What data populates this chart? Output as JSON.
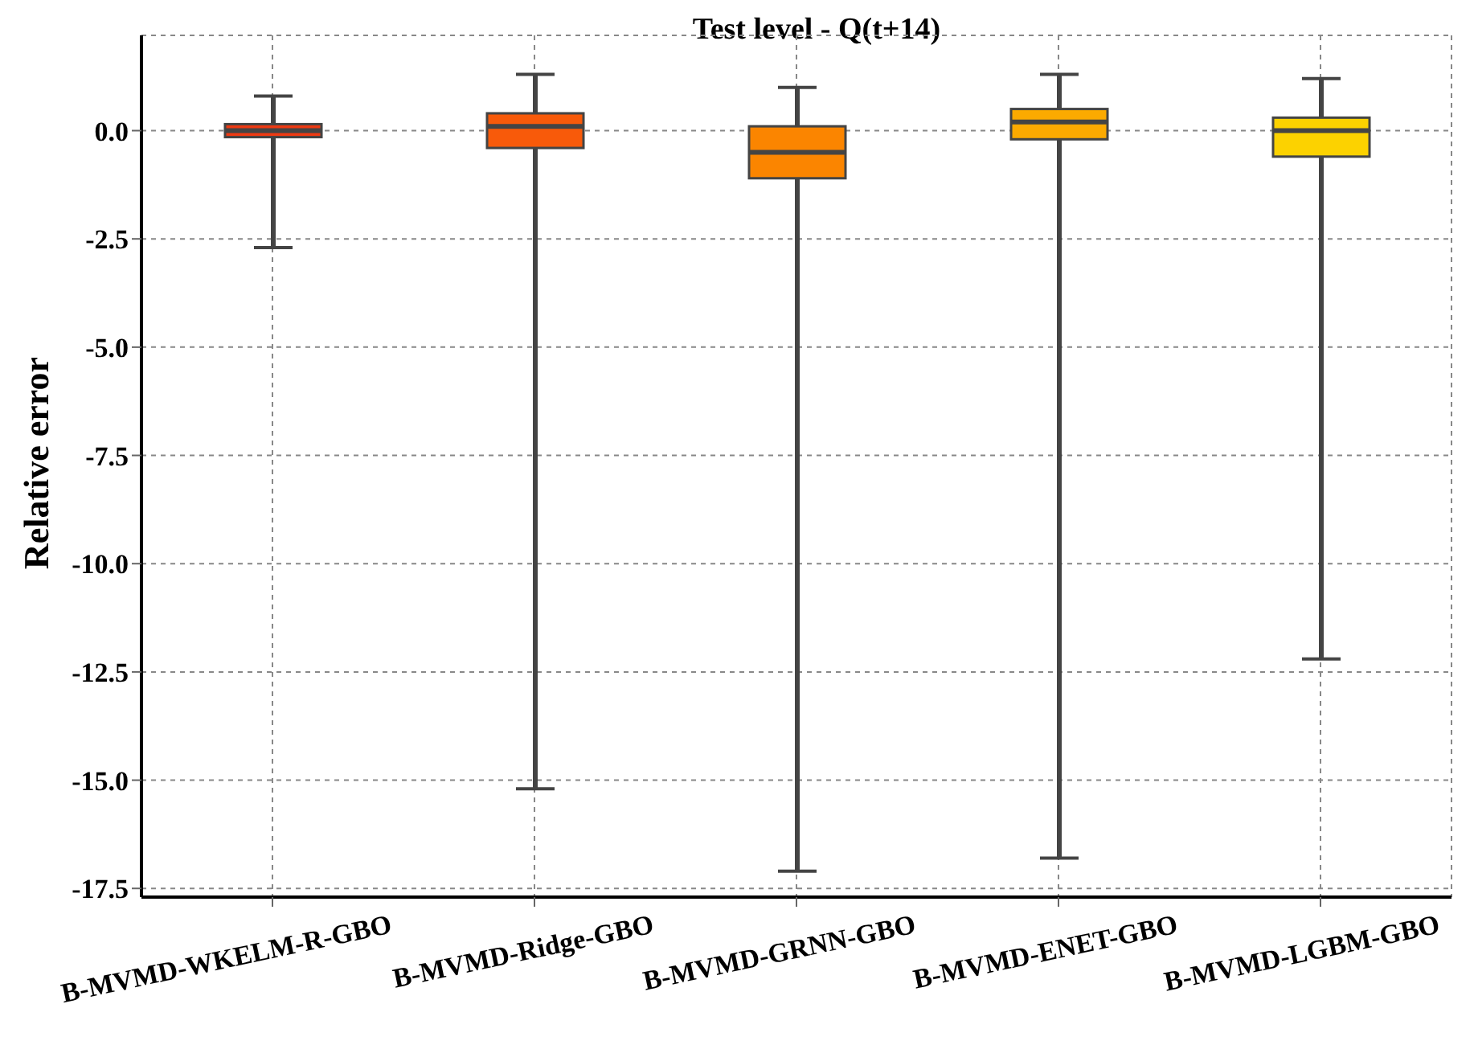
{
  "chart_data": {
    "type": "box",
    "title": "Test level - Q(t+14)",
    "ylabel": "Relative error",
    "categories": [
      "B-MVMD-WKELM-R-GBO",
      "B-MVMD-Ridge-GBO",
      "B-MVMD-GRNN-GBO",
      "B-MVMD-ENET-GBO",
      "B-MVMD-LGBM-GBO"
    ],
    "colors": [
      "#ee3a12",
      "#f85a0a",
      "#fb8500",
      "#fcaa00",
      "#fcd200"
    ],
    "boxes": [
      {
        "low": -2.7,
        "q1": -0.15,
        "median": 0,
        "q3": 0.15,
        "high": 0.8
      },
      {
        "low": -15.2,
        "q1": -0.4,
        "median": 0.1,
        "q3": 0.4,
        "high": 1.3
      },
      {
        "low": -17.1,
        "q1": -1.1,
        "median": -0.5,
        "q3": 0.1,
        "high": 1.0
      },
      {
        "low": -16.8,
        "q1": -0.2,
        "median": 0.2,
        "q3": 0.5,
        "high": 1.3
      },
      {
        "low": -12.2,
        "q1": -0.6,
        "median": 0,
        "q3": 0.3,
        "high": 1.2
      }
    ],
    "ylim": [
      -17.7,
      2.2
    ],
    "yticks": [
      {
        "value": 0,
        "label": "0.0"
      },
      {
        "value": -2.5,
        "label": "-2.5"
      },
      {
        "value": -5,
        "label": "-5.0"
      },
      {
        "value": -7.5,
        "label": "-7.5"
      },
      {
        "value": -10,
        "label": "-10.0"
      },
      {
        "value": -12.5,
        "label": "-12.5"
      },
      {
        "value": -15,
        "label": "-15.0"
      },
      {
        "value": -17.5,
        "label": "-17.5"
      }
    ],
    "grid": true
  }
}
